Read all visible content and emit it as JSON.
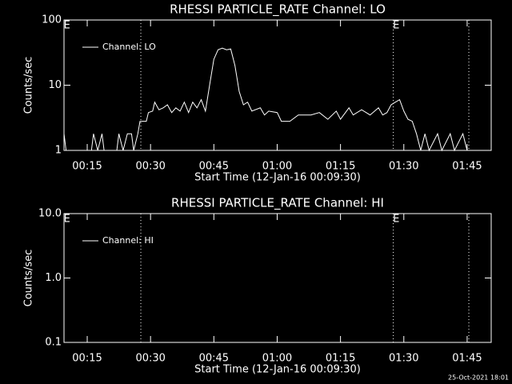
{
  "chart_data": [
    {
      "type": "line",
      "title": "RHESSI PARTICLE_RATE Channel: LO",
      "x_label": "Start Time (12-Jan-16 00:09:30)",
      "y_label": "Counts/sec",
      "xlim": [
        9.5,
        110.7
      ],
      "xticks": [
        {
          "value": 15,
          "label": "00:15"
        },
        {
          "value": 30,
          "label": "00:30"
        },
        {
          "value": 45,
          "label": "00:45"
        },
        {
          "value": 60,
          "label": "01:00"
        },
        {
          "value": 75,
          "label": "01:15"
        },
        {
          "value": 90,
          "label": "01:30"
        },
        {
          "value": 105,
          "label": "01:45"
        }
      ],
      "ylim": [
        1,
        100
      ],
      "yticks": [
        1,
        10,
        100
      ],
      "log_y": true,
      "legend": "upper left",
      "vlines": [
        27.7,
        87.5,
        105.4
      ],
      "markers": [
        {
          "x": 10.2,
          "label": "E"
        },
        {
          "x": 88.2,
          "label": "E"
        }
      ],
      "series": [
        {
          "name": "Channel: LO",
          "color": "#ffffff",
          "x": [
            9.5,
            10,
            16,
            16.5,
            17.5,
            18.5,
            19,
            22,
            22.5,
            23.5,
            24.5,
            25.5,
            26,
            27,
            27.5,
            29,
            29.5,
            30.5,
            31,
            32,
            33,
            34,
            35,
            36,
            37,
            38,
            39,
            40,
            41,
            42,
            43,
            44,
            45,
            46,
            47,
            48,
            49,
            50,
            51,
            52,
            53,
            54,
            56,
            57,
            58,
            60,
            61,
            63,
            65,
            68,
            70,
            72,
            74,
            75,
            77,
            78,
            80,
            82,
            84,
            85,
            86,
            87,
            88,
            89,
            90,
            91,
            92,
            93,
            94,
            95,
            96,
            98,
            99,
            101,
            102,
            104,
            105
          ],
          "values": [
            1.8,
            1,
            1,
            1.8,
            1,
            1.8,
            1,
            1,
            1.8,
            1,
            1.8,
            1.8,
            1,
            1.8,
            2.8,
            2.8,
            3.8,
            4,
            5.5,
            4.2,
            4.5,
            5,
            3.8,
            4.5,
            4,
            5.5,
            3.8,
            5.5,
            4.5,
            6,
            4,
            10,
            25,
            35,
            37,
            35,
            36,
            20,
            8,
            5,
            5.5,
            4,
            4.5,
            3.5,
            4,
            3.8,
            2.8,
            2.8,
            3.5,
            3.5,
            3.8,
            3,
            4,
            3,
            4.5,
            3.5,
            4.2,
            3.5,
            4.5,
            3.5,
            3.8,
            5,
            5.5,
            6,
            4,
            3,
            2.8,
            1.8,
            1,
            1.8,
            1,
            1.8,
            1,
            1.8,
            1,
            1.8,
            1
          ]
        }
      ]
    },
    {
      "type": "line",
      "title": "RHESSI PARTICLE_RATE Channel: HI",
      "x_label": "Start Time (12-Jan-16 00:09:30)",
      "y_label": "Counts/sec",
      "xlim": [
        9.5,
        110.7
      ],
      "xticks": [
        {
          "value": 15,
          "label": "00:15"
        },
        {
          "value": 30,
          "label": "00:30"
        },
        {
          "value": 45,
          "label": "00:45"
        },
        {
          "value": 60,
          "label": "01:00"
        },
        {
          "value": 75,
          "label": "01:15"
        },
        {
          "value": 90,
          "label": "01:30"
        },
        {
          "value": 105,
          "label": "01:45"
        }
      ],
      "ylim": [
        0.1,
        10
      ],
      "yticks": [
        0.1,
        {
          "value": 1,
          "label": "1.0"
        },
        {
          "value": 10,
          "label": "10.0"
        }
      ],
      "log_y": true,
      "legend": "upper left",
      "vlines": [
        27.7,
        87.5,
        105.4
      ],
      "markers": [
        {
          "x": 10.2,
          "label": "E"
        },
        {
          "x": 88.2,
          "label": "E"
        }
      ],
      "series": [
        {
          "name": "Channel: HI",
          "color": "#ffffff",
          "x": [],
          "values": []
        }
      ]
    }
  ],
  "timestamp": "25-Oct-2021 18:01"
}
